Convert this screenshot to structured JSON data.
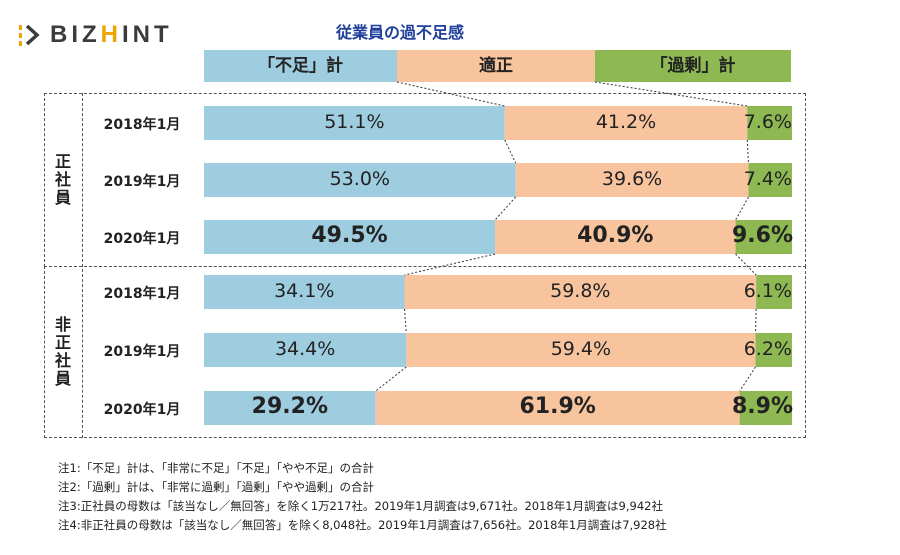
{
  "brand": {
    "prefix": "BIZ",
    "highlight": "H",
    "suffix": "INT"
  },
  "chart_data": {
    "type": "bar",
    "orientation": "horizontal",
    "stacked": true,
    "title": "従業員の過不足感",
    "legend_position": "top",
    "series": [
      {
        "name": "「不足」計",
        "color": "#9fcde0"
      },
      {
        "name": "適正",
        "color": "#f8c49e"
      },
      {
        "name": "「過剰」計",
        "color": "#8db852"
      }
    ],
    "groups": [
      {
        "label": "正社員",
        "rows": [
          {
            "label": "2018年1月",
            "values": [
              51.1,
              41.2,
              7.6
            ],
            "labels": [
              "51.1%",
              "41.2%",
              "7.6%"
            ],
            "bold": false
          },
          {
            "label": "2019年1月",
            "values": [
              53.0,
              39.6,
              7.4
            ],
            "labels": [
              "53.0%",
              "39.6%",
              "7.4%"
            ],
            "bold": false
          },
          {
            "label": "2020年1月",
            "values": [
              49.5,
              40.9,
              9.6
            ],
            "labels": [
              "49.5%",
              "40.9%",
              "9.6%"
            ],
            "bold": true
          }
        ]
      },
      {
        "label": "非正社員",
        "rows": [
          {
            "label": "2018年1月",
            "values": [
              34.1,
              59.8,
              6.1
            ],
            "labels": [
              "34.1%",
              "59.8%",
              "6.1%"
            ],
            "bold": false
          },
          {
            "label": "2019年1月",
            "values": [
              34.4,
              59.4,
              6.2
            ],
            "labels": [
              "34.4%",
              "59.4%",
              "6.2%"
            ],
            "bold": false
          },
          {
            "label": "2020年1月",
            "values": [
              29.2,
              61.9,
              8.9
            ],
            "labels": [
              "29.2%",
              "61.9%",
              "8.9%"
            ],
            "bold": true
          }
        ]
      }
    ],
    "notes": [
      "注1:「不足」計は、「非常に不足」「不足」「やや不足」の合計",
      "注2:「過剰」計は、「非常に過剰」「過剰」「やや過剰」の合計",
      "注3:正社員の母数は「該当なし／無回答」を除く1万217社。2019年1月調査は9,671社。2018年1月調査は9,942社",
      "注4:非正社員の母数は「該当なし／無回答」を除く8,048社。2019年1月調査は7,656社。2018年1月調査は7,928社"
    ]
  }
}
